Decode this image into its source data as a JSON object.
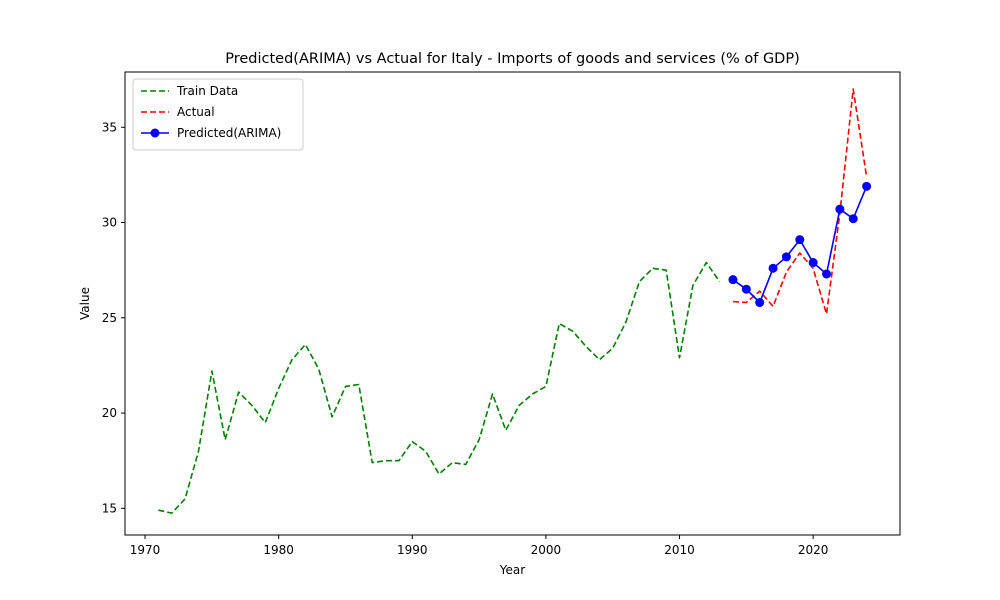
{
  "chart_data": {
    "type": "line",
    "title": "Predicted(ARIMA) vs Actual for Italy - Imports of goods and services (% of GDP)",
    "xlabel": "Year",
    "ylabel": "Value",
    "xlim": [
      1968.5,
      2026.5
    ],
    "ylim": [
      13.6,
      37.9
    ],
    "xticks": [
      1970,
      1980,
      1990,
      2000,
      2010,
      2020
    ],
    "yticks": [
      15,
      20,
      25,
      30,
      35
    ],
    "grid": false,
    "legend_position": "top-left",
    "series": [
      {
        "name": "Train Data",
        "color": "#008000",
        "style": "dashed",
        "marker": "none",
        "x": [
          1971,
          1972,
          1973,
          1974,
          1975,
          1976,
          1977,
          1978,
          1979,
          1980,
          1981,
          1982,
          1983,
          1984,
          1985,
          1986,
          1987,
          1988,
          1989,
          1990,
          1991,
          1992,
          1993,
          1994,
          1995,
          1996,
          1997,
          1998,
          1999,
          2000,
          2001,
          2002,
          2003,
          2004,
          2005,
          2006,
          2007,
          2008,
          2009,
          2010,
          2011,
          2012,
          2013
        ],
        "y": [
          14.9,
          14.75,
          15.5,
          18.0,
          22.2,
          18.6,
          21.1,
          20.4,
          19.5,
          21.3,
          22.8,
          23.6,
          22.3,
          19.8,
          21.4,
          21.5,
          17.4,
          17.5,
          17.5,
          18.5,
          18.0,
          16.8,
          17.4,
          17.3,
          18.6,
          21.0,
          19.1,
          20.4,
          21.0,
          21.4,
          24.7,
          24.3,
          23.5,
          22.8,
          23.4,
          24.8,
          26.9,
          27.6,
          27.5,
          22.9,
          26.7,
          27.9,
          26.9
        ]
      },
      {
        "name": "Actual",
        "color": "#ff0000",
        "style": "dashed",
        "marker": "none",
        "x": [
          2014,
          2015,
          2016,
          2017,
          2018,
          2019,
          2020,
          2021,
          2022,
          2023,
          2024
        ],
        "y": [
          25.85,
          25.8,
          26.4,
          25.6,
          27.4,
          28.4,
          27.6,
          25.2,
          30.5,
          37.0,
          32.4
        ]
      },
      {
        "name": "Predicted(ARIMA)",
        "color": "#0000ff",
        "style": "solid",
        "marker": "circle",
        "x": [
          2014,
          2015,
          2016,
          2017,
          2018,
          2019,
          2020,
          2021,
          2022,
          2023,
          2024
        ],
        "y": [
          27.0,
          26.5,
          25.8,
          27.6,
          28.2,
          29.1,
          27.9,
          27.3,
          30.7,
          30.2,
          31.9
        ]
      }
    ]
  }
}
